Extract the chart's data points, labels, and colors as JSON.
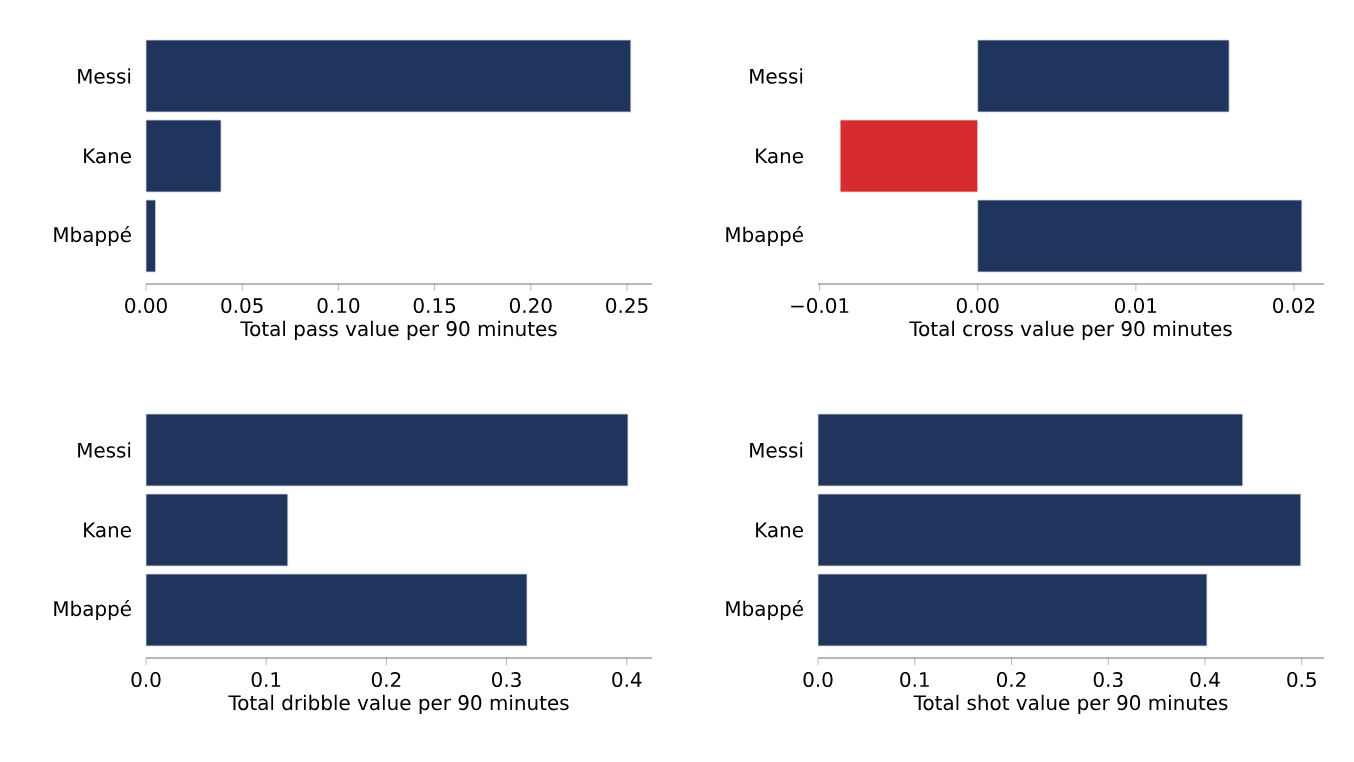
{
  "chart_data": [
    {
      "type": "bar",
      "orientation": "horizontal",
      "categories": [
        "Messi",
        "Kane",
        "Mbappé"
      ],
      "values": [
        0.252,
        0.039,
        0.005
      ],
      "colors": [
        "#1f355e",
        "#1f355e",
        "#1f355e"
      ],
      "xlabel": "Total pass value per 90 minutes",
      "xlim": [
        0,
        0.263
      ],
      "xticks": [
        {
          "value": 0,
          "label": "0.00"
        },
        {
          "value": 0.05,
          "label": "0.05"
        },
        {
          "value": 0.1,
          "label": "0.10"
        },
        {
          "value": 0.15,
          "label": "0.15"
        },
        {
          "value": 0.2,
          "label": "0.20"
        },
        {
          "value": 0.25,
          "label": "0.25"
        }
      ]
    },
    {
      "type": "bar",
      "orientation": "horizontal",
      "categories": [
        "Messi",
        "Kane",
        "Mbappé"
      ],
      "values": [
        0.0159,
        -0.0087,
        0.0205
      ],
      "colors": [
        "#1f355e",
        "#d62b2f",
        "#1f355e"
      ],
      "xlabel": "Total cross value per 90 minutes",
      "xlim": [
        -0.0101,
        0.0219
      ],
      "xticks": [
        {
          "value": -0.01,
          "label": "−0.01"
        },
        {
          "value": 0,
          "label": "0.00"
        },
        {
          "value": 0.01,
          "label": "0.01"
        },
        {
          "value": 0.02,
          "label": "0.02"
        }
      ]
    },
    {
      "type": "bar",
      "orientation": "horizontal",
      "categories": [
        "Messi",
        "Kane",
        "Mbappé"
      ],
      "values": [
        0.401,
        0.118,
        0.317
      ],
      "colors": [
        "#1f355e",
        "#1f355e",
        "#1f355e"
      ],
      "xlabel": "Total dribble value per 90 minutes",
      "xlim": [
        0,
        0.421
      ],
      "xticks": [
        {
          "value": 0,
          "label": "0.0"
        },
        {
          "value": 0.1,
          "label": "0.1"
        },
        {
          "value": 0.2,
          "label": "0.2"
        },
        {
          "value": 0.3,
          "label": "0.3"
        },
        {
          "value": 0.4,
          "label": "0.4"
        }
      ]
    },
    {
      "type": "bar",
      "orientation": "horizontal",
      "categories": [
        "Messi",
        "Kane",
        "Mbappé"
      ],
      "values": [
        0.439,
        0.499,
        0.402
      ],
      "colors": [
        "#1f355e",
        "#1f355e",
        "#1f355e"
      ],
      "xlabel": "Total shot value per 90 minutes",
      "xlim": [
        0,
        0.523
      ],
      "xticks": [
        {
          "value": 0,
          "label": "0.0"
        },
        {
          "value": 0.1,
          "label": "0.1"
        },
        {
          "value": 0.2,
          "label": "0.2"
        },
        {
          "value": 0.3,
          "label": "0.3"
        },
        {
          "value": 0.4,
          "label": "0.4"
        },
        {
          "value": 0.5,
          "label": "0.5"
        }
      ]
    }
  ]
}
